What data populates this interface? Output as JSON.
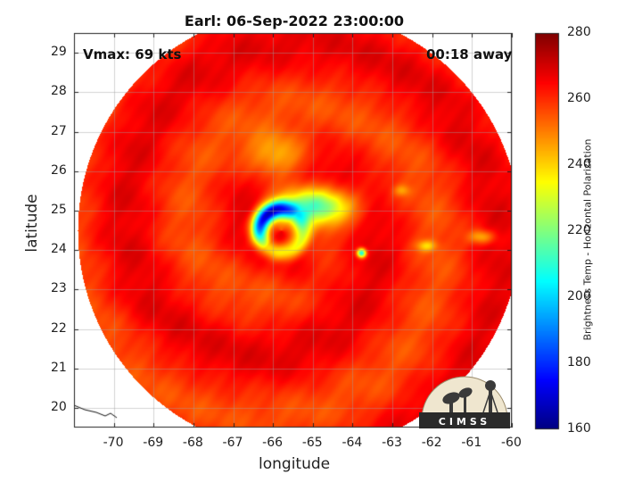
{
  "title": "Earl: 06-Sep-2022 23:00:00",
  "vmax_label": "Vmax: 69 kts",
  "time_label": "00:18 away",
  "xlabel": "longitude",
  "ylabel": "latitude",
  "colorbar_label": "Brightness Temp - Horizontal Polarization",
  "logo_text": "CIMSS",
  "x_ticks": [
    "-70",
    "-69",
    "-68",
    "-67",
    "-66",
    "-65",
    "-64",
    "-63",
    "-62",
    "-61",
    "-60"
  ],
  "y_ticks": [
    "29",
    "28",
    "27",
    "26",
    "25",
    "24",
    "23",
    "22",
    "21",
    "20"
  ],
  "cb_ticks": [
    "280",
    "260",
    "240",
    "220",
    "200",
    "180",
    "160"
  ],
  "map_data": {
    "lon_range": [
      -71,
      -60
    ],
    "lat_range": [
      19.5,
      29.5
    ],
    "storm_center": {
      "lon": -65.8,
      "lat": 24.5
    },
    "colorbar_range": [
      160,
      280
    ],
    "colormap": "jet"
  }
}
